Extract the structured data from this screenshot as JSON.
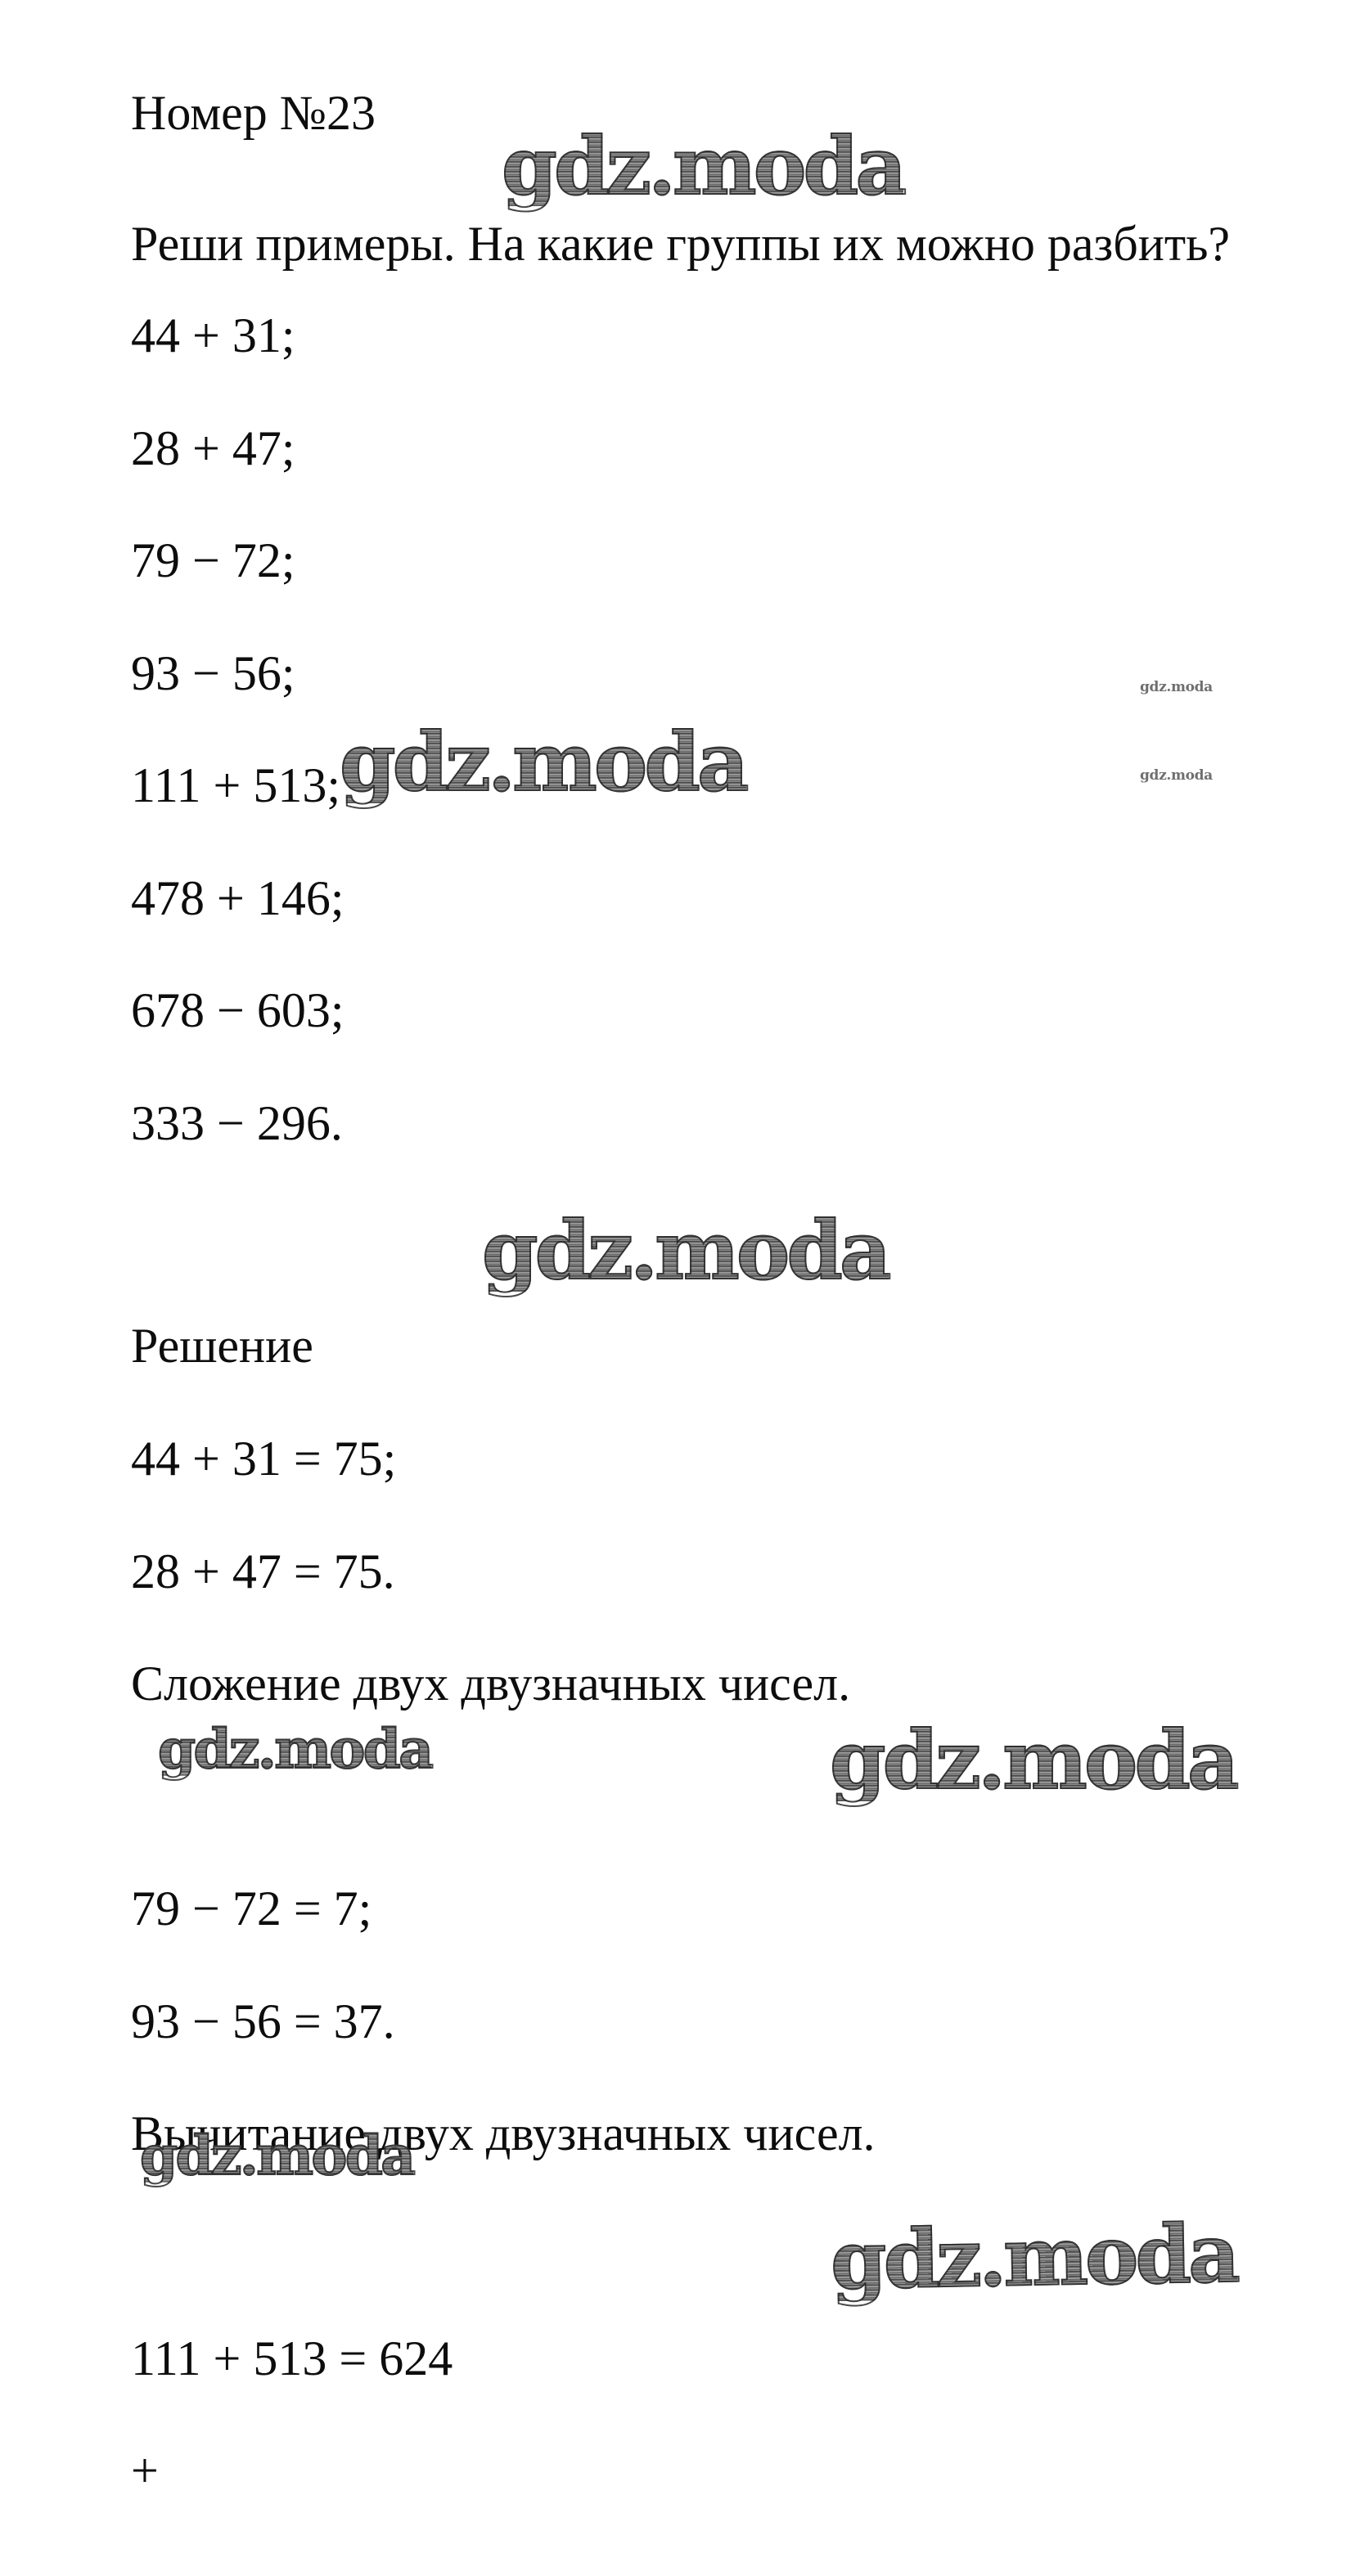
{
  "document": {
    "title": "Номер №23",
    "question": "Реши примеры. На какие группы их можно разбить?",
    "examples": [
      "44 + 31;",
      "28 + 47;",
      "79 − 72;",
      "93 − 56;",
      "111 + 513;",
      "478 + 146;",
      "678 − 603;",
      "333 − 296."
    ],
    "solution": {
      "label": "Решение",
      "groups": [
        {
          "equations": [
            "44 + 31 = 75;",
            "28 + 47 = 75."
          ],
          "caption": "Сложение двух двузначных чисел."
        },
        {
          "equations": [
            "79 − 72 = 7;",
            "93 − 56 = 37."
          ],
          "caption": "Вычитание двух двузначных чисел."
        },
        {
          "equations": [
            "111 + 513 = 624"
          ],
          "caption": ""
        }
      ],
      "incomplete_line": "+"
    }
  },
  "watermark": {
    "text": "gdz.moda",
    "fill_color": "#8a8a8a",
    "outline_color": "#3a3a3a"
  },
  "page": {
    "background": "#ffffff",
    "text_color": "#0d0d0d"
  }
}
